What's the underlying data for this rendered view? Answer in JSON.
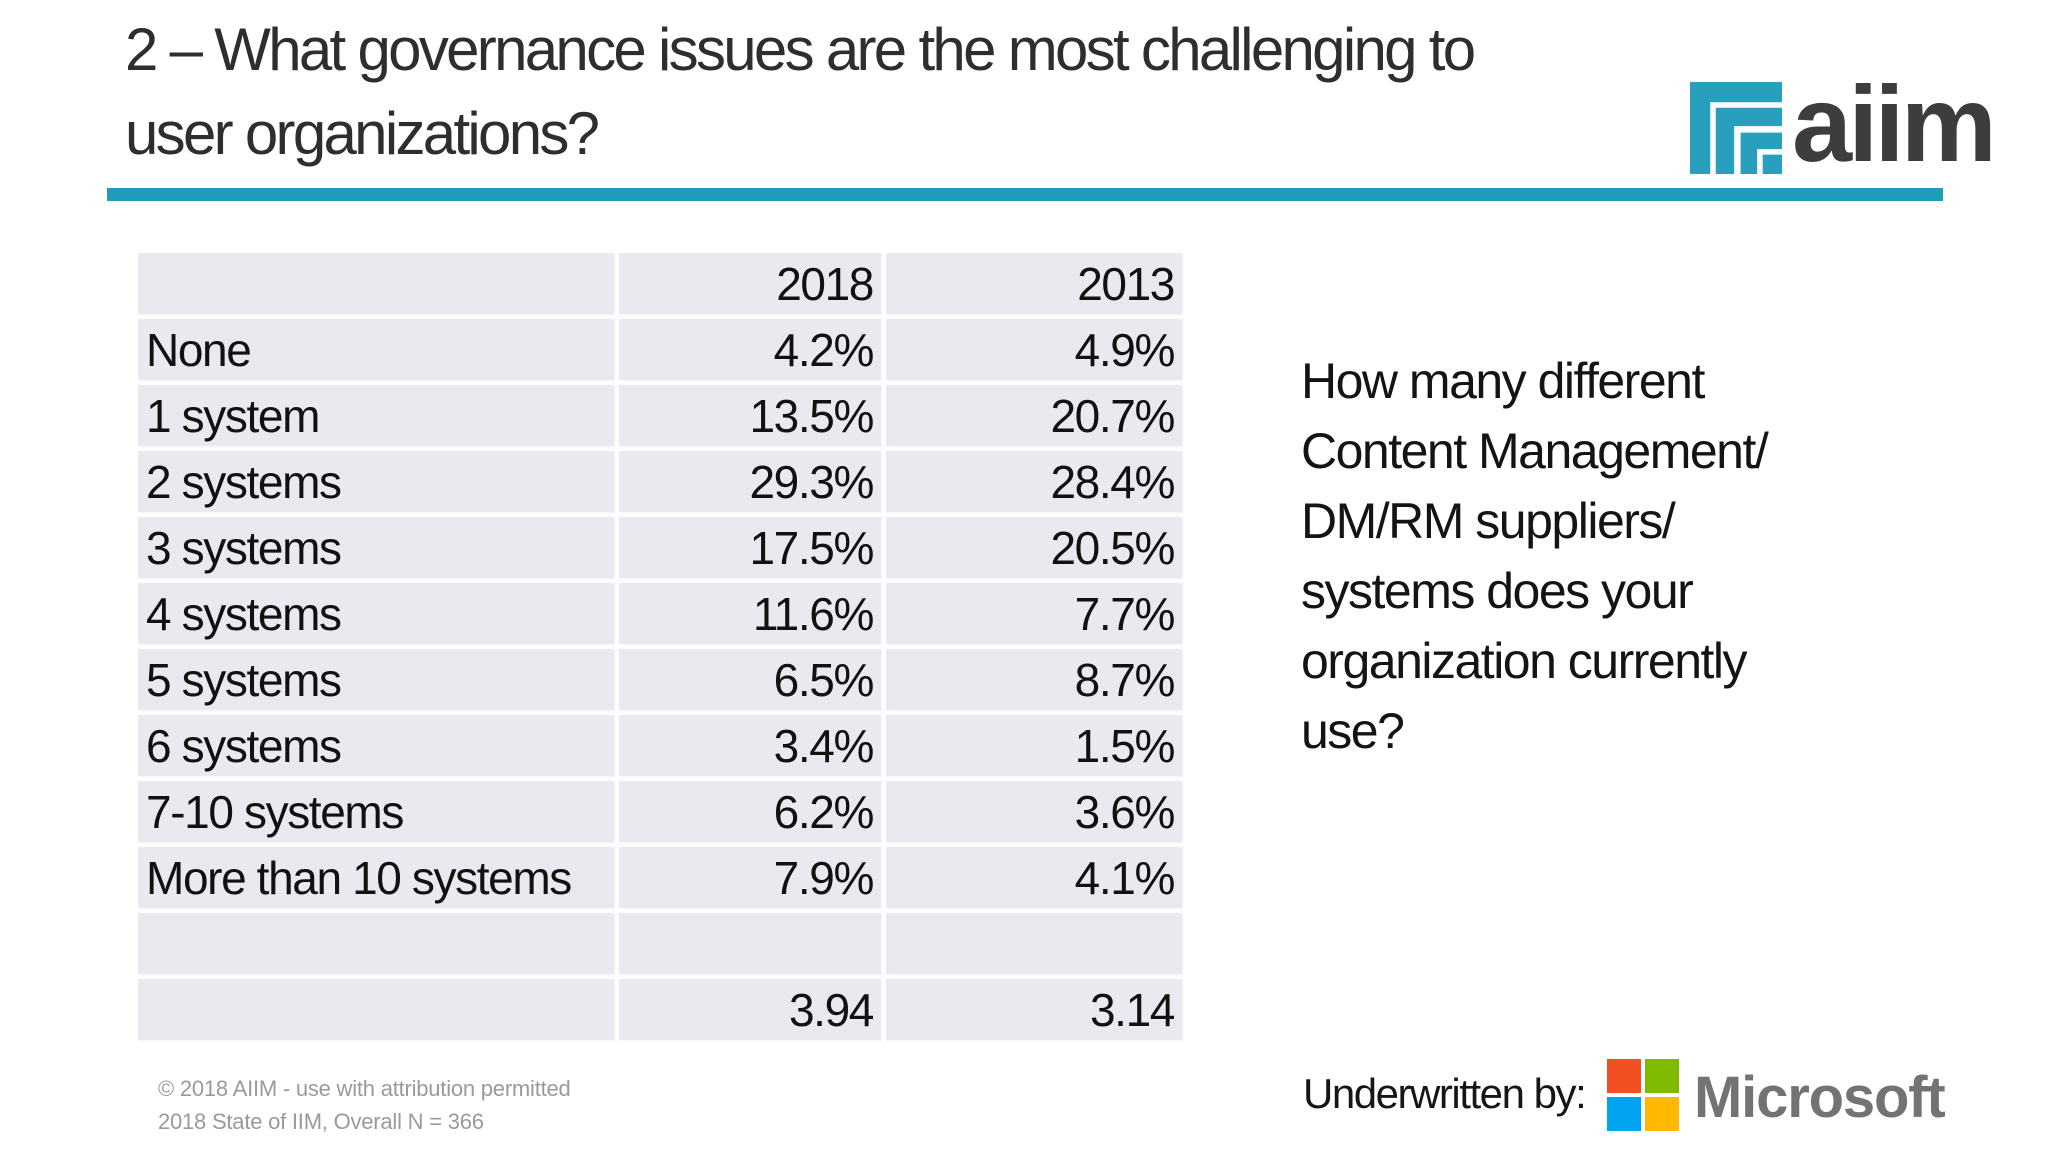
{
  "title": "2 – What governance issues are the most challenging to\nuser organizations?",
  "aiim_logo": {
    "text": "aiim"
  },
  "question": "How many different\nContent Management/\nDM/RM suppliers/\nsystems does your\norganization currently\nuse?",
  "table": {
    "headers": [
      "",
      "2018",
      "2013"
    ],
    "rows": [
      {
        "label": "None",
        "y2018": "4.2%",
        "y2013": "4.9%"
      },
      {
        "label": "1 system",
        "y2018": "13.5%",
        "y2013": "20.7%"
      },
      {
        "label": "2 systems",
        "y2018": "29.3%",
        "y2013": "28.4%"
      },
      {
        "label": "3 systems",
        "y2018": "17.5%",
        "y2013": "20.5%"
      },
      {
        "label": "4 systems",
        "y2018": "11.6%",
        "y2013": "7.7%"
      },
      {
        "label": "5 systems",
        "y2018": "6.5%",
        "y2013": "8.7%"
      },
      {
        "label": "6 systems",
        "y2018": "3.4%",
        "y2013": "1.5%"
      },
      {
        "label": "7-10 systems",
        "y2018": "6.2%",
        "y2013": "3.6%"
      },
      {
        "label": "More than 10 systems",
        "y2018": "7.9%",
        "y2013": "4.1%"
      },
      {
        "label": "",
        "y2018": "",
        "y2013": ""
      },
      {
        "label": "",
        "y2018": "3.94",
        "y2013": "3.14"
      }
    ]
  },
  "footer": {
    "copyright": "© 2018 AIIM - use with attribution permitted",
    "source": "2018 State of IIM, Overall N = 366",
    "underwritten_label": "Underwritten by:",
    "microsoft_text": "Microsoft"
  },
  "colors": {
    "accent_teal": "#1e9cb8",
    "aiim_teal": "#289fbd",
    "cell_bg": "#e9e9ef",
    "ms_red": "#f25022",
    "ms_green": "#7fba00",
    "ms_blue": "#00a4ef",
    "ms_yellow": "#ffb900",
    "ms_gray": "#737373"
  },
  "chart_data": {
    "type": "table",
    "title": "How many different Content Management/DM/RM suppliers/systems does your organization currently use?",
    "categories": [
      "None",
      "1 system",
      "2 systems",
      "3 systems",
      "4 systems",
      "5 systems",
      "6 systems",
      "7-10 systems",
      "More than 10 systems"
    ],
    "series": [
      {
        "name": "2018",
        "unit": "%",
        "values": [
          4.2,
          13.5,
          29.3,
          17.5,
          11.6,
          6.5,
          3.4,
          6.2,
          7.9
        ],
        "average": 3.94
      },
      {
        "name": "2013",
        "unit": "%",
        "values": [
          4.9,
          20.7,
          28.4,
          20.5,
          7.7,
          8.7,
          1.5,
          3.6,
          4.1
        ],
        "average": 3.14
      }
    ],
    "legend_position": "column headers",
    "grid": false
  }
}
